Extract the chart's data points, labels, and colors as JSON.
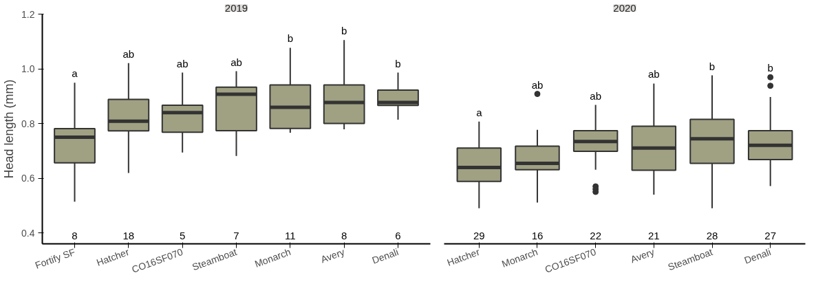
{
  "chart_data": [
    {
      "type": "box",
      "title": "2019",
      "ylabel": "Head length (mm)",
      "color": "#a0a083",
      "grid": false,
      "ylim": [
        0.36,
        1.2
      ],
      "yticks": [
        0.4,
        0.6,
        0.8,
        {
          "value": 1.0,
          "label": "1.0"
        },
        1.2
      ],
      "categories": [
        "Fortify SF",
        "Hatcher",
        "CO16SF070",
        "Steamboat",
        "Monarch",
        "Avery",
        "Denali"
      ],
      "boxes": [
        {
          "low": 0.514,
          "q1": 0.656,
          "median": 0.75,
          "q3": 0.781,
          "high": 0.949
        },
        {
          "low": 0.619,
          "q1": 0.773,
          "median": 0.808,
          "q3": 0.888,
          "high": 1.021
        },
        {
          "low": 0.694,
          "q1": 0.768,
          "median": 0.84,
          "q3": 0.867,
          "high": 0.986
        },
        {
          "low": 0.681,
          "q1": 0.774,
          "median": 0.907,
          "q3": 0.933,
          "high": 0.991
        },
        {
          "low": 0.766,
          "q1": 0.782,
          "median": 0.859,
          "q3": 0.941,
          "high": 1.077
        },
        {
          "low": 0.779,
          "q1": 0.8,
          "median": 0.877,
          "q3": 0.941,
          "high": 1.105
        },
        {
          "low": 0.814,
          "q1": 0.866,
          "median": 0.877,
          "q3": 0.922,
          "high": 0.986
        }
      ],
      "annotations": [
        "a",
        "ab",
        "ab",
        "ab",
        "b",
        "b",
        "b",
        "8",
        "18",
        "5",
        "7",
        "11",
        "8",
        "6"
      ]
    },
    {
      "type": "box",
      "title": "2020",
      "color": "#a0a083",
      "grid": false,
      "ylim": [
        0.36,
        1.2
      ],
      "yticks": [
        0.4,
        0.6,
        0.8,
        1.0,
        1.2
      ],
      "tick_labels": "x",
      "categories": [
        "Hatcher",
        "Monarch",
        "CO16SF070",
        "Avery",
        "Steamboat",
        "Denali"
      ],
      "boxes": [
        {
          "low": 0.49,
          "q1": 0.588,
          "median": 0.639,
          "q3": 0.71,
          "high": 0.807
        },
        {
          "low": 0.511,
          "q1": 0.631,
          "median": 0.654,
          "q3": 0.717,
          "high": 0.777,
          "outliers": [
            0.908
          ]
        },
        {
          "low": 0.631,
          "q1": 0.698,
          "median": 0.734,
          "q3": 0.774,
          "high": 0.868,
          "outliers": [
            0.57,
            0.56,
            0.55
          ]
        },
        {
          "low": 0.54,
          "q1": 0.629,
          "median": 0.71,
          "q3": 0.79,
          "high": 0.946
        },
        {
          "low": 0.49,
          "q1": 0.654,
          "median": 0.744,
          "q3": 0.815,
          "high": 0.976
        },
        {
          "low": 0.571,
          "q1": 0.668,
          "median": 0.72,
          "q3": 0.774,
          "high": 0.897,
          "outliers": [
            0.969,
            0.938
          ]
        }
      ],
      "annotations": [
        "a",
        "ab",
        "ab",
        "ab",
        "b",
        "b",
        "29",
        "16",
        "22",
        "21",
        "28",
        "27"
      ]
    }
  ]
}
